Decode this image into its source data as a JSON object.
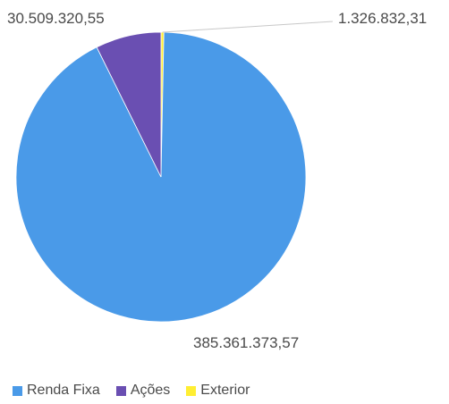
{
  "chart_data": {
    "type": "pie",
    "title": "",
    "legend_position": "bottom-left",
    "slices": [
      {
        "label": "Renda Fixa",
        "value": 385361373.57,
        "value_label": "385.361.373,57",
        "color": "#4a9ae8"
      },
      {
        "label": "Ações",
        "value": 30509320.55,
        "value_label": "30.509.320,55",
        "color": "#6a4fb2"
      },
      {
        "label": "Exterior",
        "value": 1326832.31,
        "value_label": "1.326.832,31",
        "color": "#ffee33"
      }
    ]
  }
}
